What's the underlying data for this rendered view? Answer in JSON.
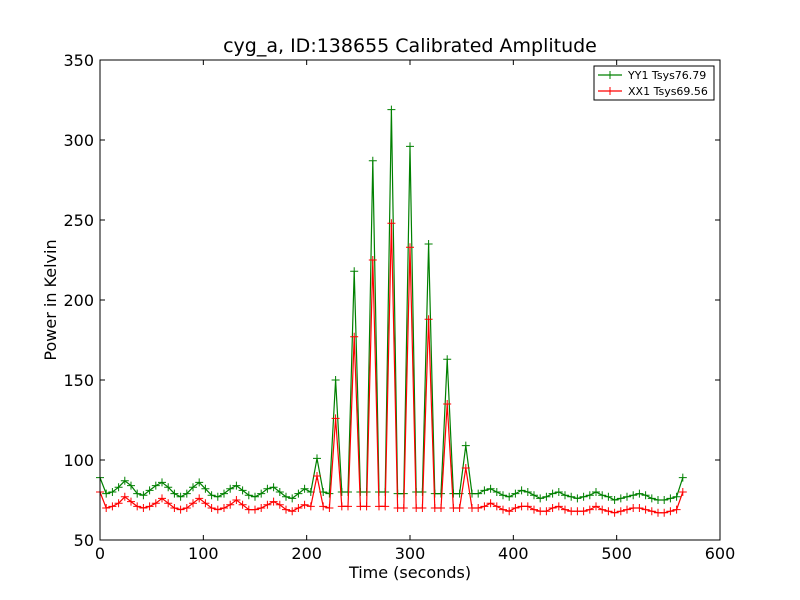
{
  "chart_data": {
    "type": "line",
    "title": "cyg_a, ID:138655 Calibrated Amplitude",
    "xlabel": "Time (seconds)",
    "ylabel": "Power in Kelvin",
    "xlim": [
      0,
      600
    ],
    "ylim": [
      50,
      350
    ],
    "xticks": [
      0,
      100,
      200,
      300,
      400,
      500,
      600
    ],
    "yticks": [
      50,
      100,
      150,
      200,
      250,
      300,
      350
    ],
    "grid": false,
    "legend_position": "top-right",
    "x": [
      0,
      6,
      12,
      18,
      24,
      30,
      36,
      42,
      48,
      54,
      60,
      66,
      72,
      78,
      84,
      90,
      96,
      102,
      108,
      114,
      120,
      126,
      132,
      138,
      144,
      150,
      156,
      162,
      168,
      174,
      180,
      186,
      192,
      198,
      204,
      210,
      216,
      222,
      228,
      234,
      240,
      246,
      252,
      258,
      264,
      270,
      276,
      282,
      288,
      294,
      300,
      306,
      312,
      318,
      324,
      330,
      336,
      342,
      348,
      354,
      360,
      366,
      372,
      378,
      384,
      390,
      396,
      402,
      408,
      414,
      420,
      426,
      432,
      438,
      444,
      450,
      456,
      462,
      468,
      474,
      480,
      486,
      492,
      498,
      504,
      510,
      516,
      522,
      528,
      534,
      540,
      546,
      552,
      558,
      564
    ],
    "series": [
      {
        "name": "YY1 Tsys76.79",
        "color": "#008000",
        "values": [
          89,
          79,
          80,
          83,
          87,
          84,
          79,
          78,
          81,
          84,
          86,
          83,
          79,
          77,
          79,
          83,
          86,
          82,
          78,
          77,
          79,
          82,
          84,
          81,
          78,
          77,
          79,
          82,
          83,
          80,
          77,
          76,
          79,
          82,
          80,
          101,
          80,
          79,
          150,
          80,
          80,
          218,
          80,
          80,
          287,
          80,
          80,
          319,
          79,
          79,
          296,
          80,
          80,
          235,
          79,
          79,
          163,
          79,
          79,
          109,
          79,
          79,
          81,
          82,
          80,
          78,
          77,
          79,
          81,
          80,
          78,
          76,
          77,
          79,
          80,
          78,
          77,
          76,
          77,
          78,
          80,
          78,
          77,
          75,
          76,
          77,
          78,
          79,
          78,
          76,
          75,
          75,
          76,
          77,
          89
        ]
      },
      {
        "name": "XX1 Tsys69.56",
        "color": "#ff0000",
        "values": [
          80,
          70,
          71,
          73,
          77,
          74,
          71,
          70,
          71,
          73,
          76,
          73,
          70,
          69,
          70,
          73,
          76,
          73,
          70,
          69,
          70,
          72,
          75,
          72,
          69,
          69,
          70,
          72,
          74,
          72,
          69,
          68,
          70,
          72,
          71,
          90,
          71,
          70,
          126,
          71,
          71,
          177,
          71,
          71,
          225,
          71,
          71,
          248,
          70,
          70,
          233,
          70,
          70,
          188,
          70,
          70,
          135,
          70,
          70,
          95,
          70,
          70,
          71,
          73,
          71,
          69,
          68,
          70,
          71,
          71,
          69,
          68,
          68,
          70,
          71,
          69,
          68,
          68,
          68,
          69,
          71,
          69,
          68,
          67,
          68,
          69,
          70,
          70,
          69,
          68,
          67,
          67,
          68,
          69,
          80
        ]
      }
    ]
  }
}
